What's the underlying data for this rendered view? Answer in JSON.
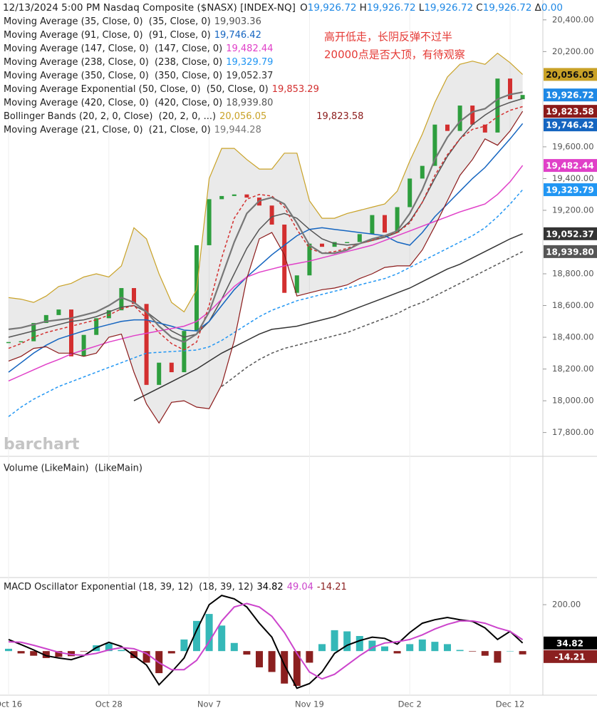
{
  "chart_data": [
    {
      "type": "candlestick",
      "header": {
        "title": "12/13/2024 5:00 PM Nasdaq Composite ($NASX) [INDEX-NQ]",
        "quote": [
          {
            "key": "O",
            "value": "19,926.72"
          },
          {
            "key": "H",
            "value": "19,926.72"
          },
          {
            "key": "L",
            "value": "19,926.72"
          },
          {
            "key": "C",
            "value": "19,926.72"
          },
          {
            "key": "Δ",
            "value": "0.00"
          }
        ]
      },
      "annotations": [
        "高开低走，长阴反弹不过半",
        "20000点是否大顶，有待观察"
      ],
      "watermark": "barchart",
      "categories": [
        "Oct 16",
        null,
        null,
        null,
        null,
        null,
        null,
        null,
        "Oct 28",
        null,
        null,
        null,
        null,
        null,
        null,
        null,
        "Nov 7",
        null,
        null,
        null,
        null,
        null,
        null,
        null,
        "Nov 19",
        null,
        null,
        null,
        null,
        null,
        null,
        null,
        "Dec 2",
        null,
        null,
        null,
        null,
        null,
        null,
        null,
        "Dec 12",
        null
      ],
      "ylim": [
        17650,
        20525
      ],
      "yticks": [
        {
          "value": 20400,
          "label": "20,400.00"
        },
        {
          "value": 20200,
          "label": "20,200.00"
        },
        {
          "value": 19600,
          "label": "19,600.00"
        },
        {
          "value": 19400,
          "label": "19,400.00"
        },
        {
          "value": 19200,
          "label": "19,200.00"
        },
        {
          "value": 18800,
          "label": "18,800.00"
        },
        {
          "value": 18600,
          "label": "18,600.00"
        },
        {
          "value": 18400,
          "label": "18,400.00"
        },
        {
          "value": 18200,
          "label": "18,200.00"
        },
        {
          "value": 18000,
          "label": "18,000.00"
        },
        {
          "value": 17800,
          "label": "17,800.00"
        }
      ],
      "price": {
        "up_color": "#2e9e3e",
        "down_color": "#d32f2f",
        "tag_color": "#1e88e5",
        "value_label": "19,926.72",
        "values": [
          18370,
          18375,
          18490,
          18540,
          18575,
          18280,
          18415,
          18520,
          18570,
          18710,
          18610,
          18100,
          18240,
          18180,
          18440,
          18980,
          19270,
          19290,
          19300,
          19280,
          19230,
          19110,
          18680,
          18790,
          18990,
          18970,
          19000,
          19000,
          19050,
          19170,
          19060,
          19220,
          19400,
          19480,
          19740,
          19700,
          19860,
          19740,
          19690,
          20030,
          19900,
          19926.72
        ]
      },
      "series": [
        {
          "name": "Moving Average (35, Close, 0)  (35, Close, 0)",
          "color": "#555555",
          "value_label": "19,903.36",
          "values": [
            18400,
            18420,
            18440,
            18460,
            18480,
            18500,
            18510,
            18530,
            18560,
            18590,
            18600,
            18560,
            18500,
            18440,
            18400,
            18420,
            18500,
            18640,
            18800,
            18960,
            19080,
            19160,
            19180,
            19150,
            19080,
            19020,
            18990,
            18980,
            18990,
            19010,
            19030,
            19060,
            19130,
            19250,
            19400,
            19540,
            19650,
            19740,
            19800,
            19850,
            19880,
            19903.36
          ]
        },
        {
          "name": "Moving Average (91, Close, 0)  (91, Close, 0)",
          "color": "#1565c0",
          "value_label": "19,746.42",
          "price_tag": true,
          "values": [
            18180,
            18240,
            18300,
            18350,
            18390,
            18415,
            18440,
            18460,
            18480,
            18500,
            18510,
            18510,
            18490,
            18470,
            18445,
            18440,
            18500,
            18600,
            18700,
            18780,
            18850,
            18920,
            18980,
            19040,
            19080,
            19090,
            19080,
            19070,
            19060,
            19050,
            19040,
            19000,
            18980,
            19060,
            19160,
            19240,
            19320,
            19400,
            19470,
            19560,
            19650,
            19746.42
          ]
        },
        {
          "name": "Moving Average (147, Close, 0)  (147, Close, 0)",
          "color": "#e040c8",
          "value_label": "19,482.44",
          "price_tag": true,
          "values": [
            18125,
            18160,
            18195,
            18230,
            18260,
            18295,
            18320,
            18345,
            18370,
            18390,
            18410,
            18425,
            18440,
            18455,
            18470,
            18500,
            18560,
            18640,
            18720,
            18780,
            18810,
            18830,
            18850,
            18865,
            18880,
            18900,
            18920,
            18940,
            18960,
            18980,
            19010,
            19040,
            19070,
            19100,
            19130,
            19160,
            19190,
            19215,
            19240,
            19300,
            19380,
            19482.44
          ]
        },
        {
          "name": "Moving Average (238, Close, 0)  (238, Close, 0)",
          "color": "#2196f3",
          "dash": true,
          "value_label": "19,329.79",
          "price_tag": true,
          "values": [
            17900,
            17960,
            18010,
            18050,
            18090,
            18120,
            18150,
            18180,
            18210,
            18240,
            18270,
            18300,
            18305,
            18310,
            18315,
            18320,
            18340,
            18380,
            18430,
            18480,
            18530,
            18570,
            18600,
            18630,
            18650,
            18670,
            18690,
            18710,
            18730,
            18750,
            18770,
            18800,
            18840,
            18880,
            18920,
            18960,
            19000,
            19040,
            19090,
            19160,
            19240,
            19329.79
          ]
        },
        {
          "name": "Moving Average (350, Close, 0)  (350, Close, 0)",
          "color": "#333333",
          "value_label": "19,052.37",
          "price_tag": true,
          "values": [
            null,
            null,
            null,
            null,
            null,
            null,
            null,
            null,
            null,
            null,
            18000,
            18040,
            18080,
            18120,
            18160,
            18200,
            18250,
            18300,
            18340,
            18380,
            18420,
            18450,
            18460,
            18470,
            18490,
            18510,
            18530,
            18560,
            18590,
            18620,
            18650,
            18680,
            18710,
            18750,
            18790,
            18830,
            18860,
            18900,
            18940,
            18980,
            19020,
            19052.37
          ]
        },
        {
          "name": "Moving Average Exponential (50, Close, 0)  (50, Close, 0)",
          "color": "#d32f2f",
          "dash": true,
          "value_label": "19,853.29",
          "values": [
            18330,
            18360,
            18400,
            18430,
            18450,
            18470,
            18490,
            18510,
            18540,
            18580,
            18600,
            18520,
            18430,
            18360,
            18320,
            18370,
            18600,
            18900,
            19150,
            19270,
            19300,
            19290,
            19220,
            19080,
            18960,
            18930,
            18940,
            18960,
            18990,
            19010,
            19040,
            19060,
            19120,
            19250,
            19420,
            19550,
            19650,
            19710,
            19730,
            19790,
            19830,
            19853.29
          ]
        },
        {
          "name": "Moving Average (420, Close, 0)  (420, Close, 0)",
          "color": "#555555",
          "dash": true,
          "value_label": "18,939.80",
          "price_tag": true,
          "values": [
            null,
            null,
            null,
            null,
            null,
            null,
            null,
            null,
            null,
            null,
            null,
            null,
            null,
            null,
            null,
            null,
            null,
            18090,
            18150,
            18210,
            18260,
            18300,
            18330,
            18350,
            18370,
            18390,
            18410,
            18430,
            18460,
            18490,
            18520,
            18550,
            18590,
            18620,
            18660,
            18700,
            18740,
            18780,
            18820,
            18860,
            18900,
            18939.8
          ]
        },
        {
          "name": "Bollinger Bands (20, 2, 0, Close)  (20, 2, 0, ...)",
          "fill": "#9e9e9e",
          "upper": {
            "color": "#c9a227",
            "value_label": "20,056.05",
            "price_tag": true,
            "values": [
              18650,
              18640,
              18620,
              18660,
              18720,
              18740,
              18780,
              18800,
              18780,
              18850,
              19090,
              19020,
              18800,
              18620,
              18560,
              18700,
              19400,
              19590,
              19590,
              19520,
              19460,
              19460,
              19560,
              19560,
              19260,
              19150,
              19150,
              19180,
              19200,
              19220,
              19240,
              19320,
              19510,
              19680,
              19880,
              20040,
              20120,
              20140,
              20120,
              20190,
              20130,
              20056.05
            ]
          },
          "lower": {
            "color": "#8b1a1a",
            "value_label": "19,823.58",
            "price_tag": true,
            "values": [
              18250,
              18280,
              18330,
              18340,
              18300,
              18300,
              18280,
              18300,
              18400,
              18420,
              18180,
              17980,
              17860,
              17990,
              18000,
              17960,
              17950,
              18100,
              18380,
              18770,
              19020,
              19060,
              18920,
              18660,
              18680,
              18700,
              18710,
              18730,
              18770,
              18800,
              18840,
              18850,
              18850,
              18950,
              19100,
              19260,
              19420,
              19520,
              19650,
              19610,
              19700,
              19823.58
            ]
          }
        },
        {
          "name": "Moving Average (21, Close, 0)  (21, Close, 0)",
          "color": "#777777",
          "wide": true,
          "value_label": "19,944.28",
          "values": [
            18450,
            18460,
            18480,
            18500,
            18510,
            18520,
            18540,
            18560,
            18600,
            18650,
            18620,
            18560,
            18470,
            18400,
            18370,
            18420,
            18560,
            18780,
            19000,
            19180,
            19260,
            19280,
            19240,
            19120,
            18980,
            18930,
            18930,
            18950,
            18990,
            19020,
            19040,
            19070,
            19180,
            19330,
            19520,
            19660,
            19760,
            19820,
            19840,
            19900,
            19930,
            19944.28
          ]
        }
      ]
    },
    {
      "type": "bar",
      "title": "Volume (LikeMain)  (LikeMain)"
    },
    {
      "type": "line",
      "title": "MACD Oscillator Exponential (18, 39, 12)  (18, 39, 12)",
      "ylim": [
        -190,
        317
      ],
      "yticks": [
        {
          "value": 200,
          "label": "200.00"
        }
      ],
      "series": [
        {
          "name": "MACD",
          "color": "#000000",
          "price_tag": true,
          "values": [
            50,
            28,
            5,
            -20,
            -30,
            -37,
            -20,
            15,
            38,
            20,
            -20,
            -60,
            -145,
            -90,
            -30,
            90,
            200,
            240,
            225,
            190,
            120,
            60,
            -60,
            -160,
            -140,
            -90,
            -10,
            25,
            45,
            60,
            55,
            30,
            80,
            120,
            135,
            145,
            135,
            128,
            100,
            50,
            85,
            34.82
          ]
        },
        {
          "name": "Signal",
          "color": "#cc44cc",
          "values": [
            40,
            38,
            25,
            10,
            -5,
            -15,
            -18,
            -10,
            5,
            15,
            10,
            -10,
            -50,
            -80,
            -80,
            -40,
            40,
            130,
            190,
            205,
            190,
            150,
            80,
            -10,
            -90,
            -120,
            -100,
            -60,
            -20,
            15,
            35,
            40,
            50,
            70,
            95,
            115,
            130,
            130,
            120,
            100,
            85,
            49.04
          ]
        }
      ],
      "histogram": {
        "up_color": "#35b8b8",
        "down_color": "#8b2020",
        "price_tag": true,
        "values": [
          10,
          -10,
          -20,
          -30,
          -25,
          -22,
          -2,
          25,
          33,
          5,
          -30,
          -50,
          -95,
          -10,
          50,
          130,
          160,
          110,
          35,
          -15,
          -70,
          -90,
          -140,
          -150,
          -50,
          30,
          90,
          85,
          65,
          45,
          20,
          -10,
          30,
          50,
          40,
          30,
          5,
          -2,
          -20,
          -50,
          0,
          -14.21
        ]
      }
    }
  ]
}
